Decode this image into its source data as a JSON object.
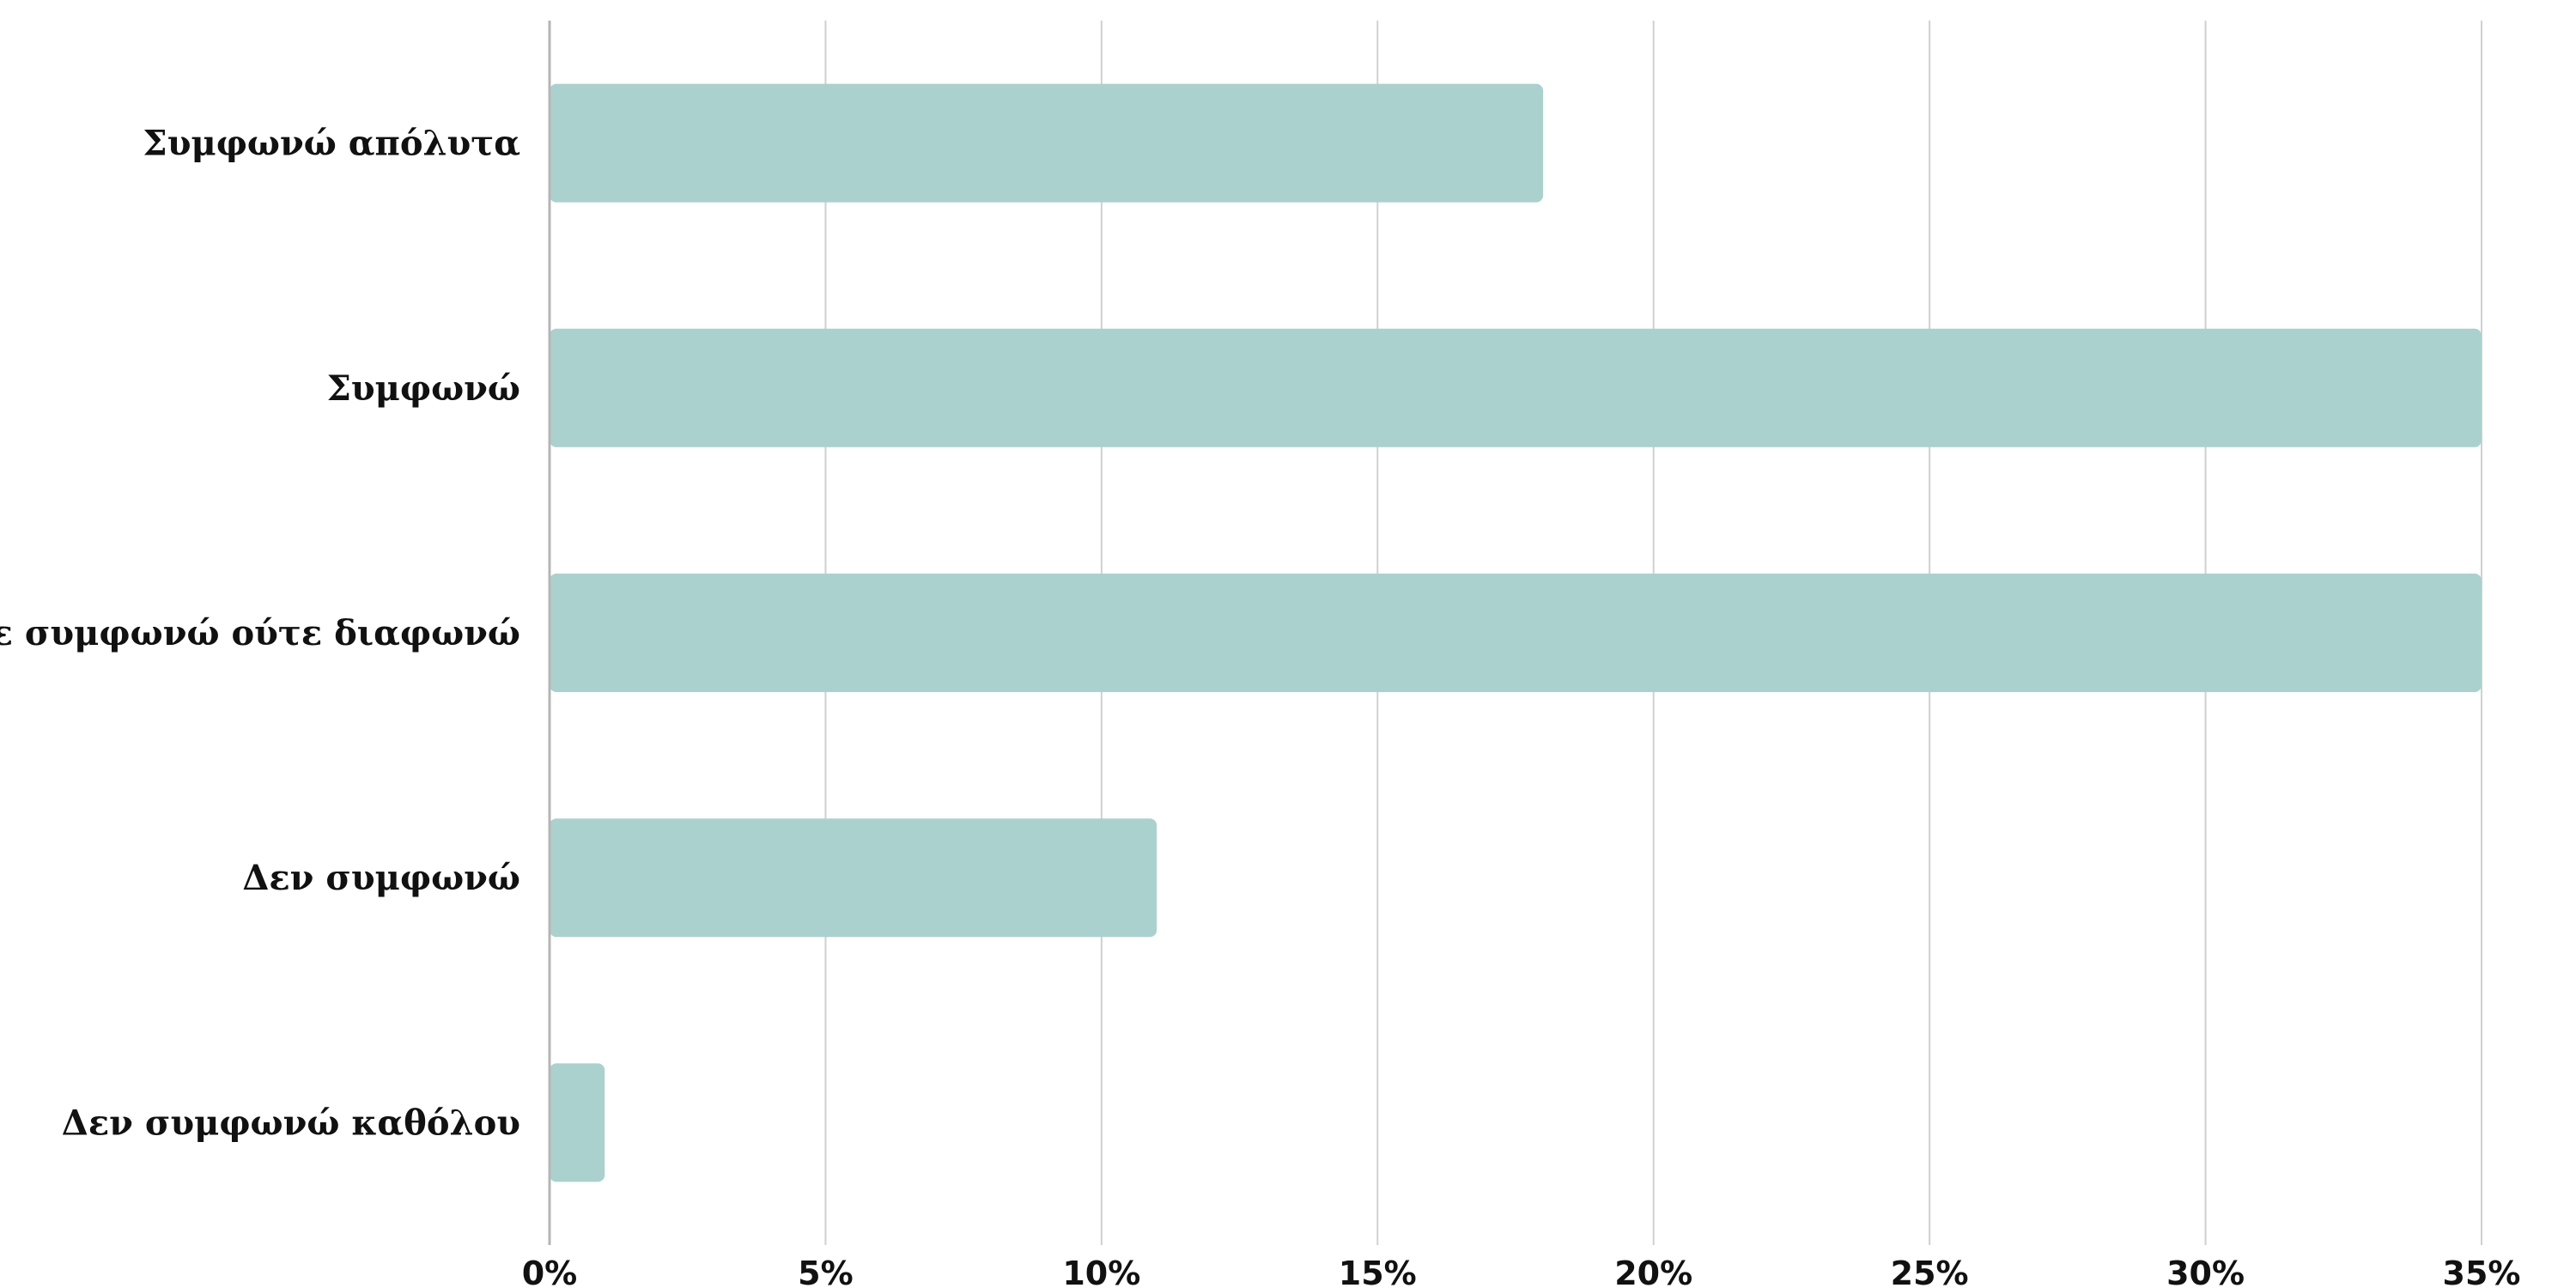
{
  "chart_data": {
    "type": "bar",
    "orientation": "horizontal",
    "categories": [
      "Συμφωνώ απόλυτα",
      "Συμφωνώ",
      "Ούτε συμφωνώ ούτε διαφωνώ",
      "Δεν συμφωνώ",
      "Δεν συμφωνώ καθόλου"
    ],
    "values": [
      18,
      35,
      35,
      11,
      1
    ],
    "unit": "%",
    "xlim": [
      0,
      35
    ],
    "xticks": [
      0,
      5,
      10,
      15,
      20,
      25,
      30,
      35
    ],
    "xtick_labels": [
      "0%",
      "5%",
      "10%",
      "15%",
      "20%",
      "25%",
      "30%",
      "35%"
    ],
    "grid": "vertical",
    "legend": "none",
    "bar_color": "#abd1ce"
  }
}
